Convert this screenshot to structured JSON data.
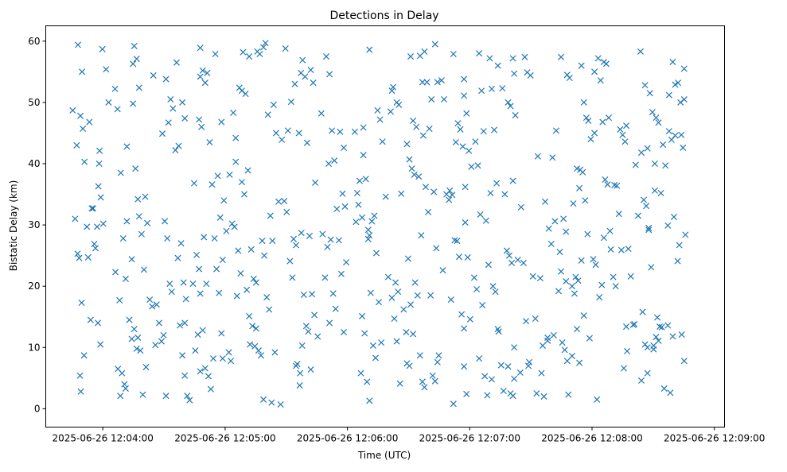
{
  "chart_data": {
    "type": "scatter",
    "title": "Detections in Delay",
    "xlabel": "Time (UTC)",
    "ylabel": "Bistatic Delay (km)",
    "x_origin": "2025-06-26 12:04:00",
    "xlim_seconds": [
      -28,
      305
    ],
    "ylim": [
      -3,
      62.5
    ],
    "x_ticks": [
      {
        "t": 0,
        "label": "2025-06-26 12:04:00"
      },
      {
        "t": 60,
        "label": "2025-06-26 12:05:00"
      },
      {
        "t": 120,
        "label": "2025-06-26 12:06:00"
      },
      {
        "t": 180,
        "label": "2025-06-26 12:07:00"
      },
      {
        "t": 240,
        "label": "2025-06-26 12:08:00"
      },
      {
        "t": 300,
        "label": "2025-06-26 12:09:00"
      }
    ],
    "y_ticks": [
      0,
      10,
      20,
      30,
      40,
      50,
      60
    ],
    "marker": "x",
    "color": "#1f77b4",
    "grid": false,
    "points_by_time": [
      [
        -13,
        [
          48.7,
          31,
          25.3,
          5.4
        ]
      ],
      [
        -11,
        [
          59.4,
          47.8,
          45.7,
          43,
          24.6,
          17.3,
          8.7
        ]
      ],
      [
        -9,
        [
          55,
          40.3,
          29.7,
          2.8
        ]
      ],
      [
        -6,
        [
          46.8,
          32.7,
          26.9,
          24.7,
          14.5
        ]
      ],
      [
        -3,
        [
          40,
          32.7,
          26.2,
          14,
          10.5
        ]
      ],
      [
        -1,
        [
          36.3,
          34.5,
          30.2,
          29.7,
          42.1
        ]
      ],
      [
        1,
        [
          55.4,
          50,
          58.7
        ]
      ],
      [
        6,
        [
          52.2,
          48.9
        ]
      ],
      [
        8,
        [
          22.3,
          6.5,
          2.1
        ]
      ],
      [
        10,
        [
          42.8,
          38.5,
          27.8,
          21.2,
          17.7,
          5.8,
          4
        ]
      ],
      [
        13,
        [
          56.3,
          30.6,
          14.5,
          11.4,
          3.3
        ]
      ],
      [
        16,
        [
          59.2,
          57.1,
          52.4,
          49.8,
          39.2,
          34.2,
          24.4,
          13,
          9.8
        ]
      ],
      [
        19,
        [
          34.6,
          31.4,
          28.5,
          22.7,
          11.6,
          9.5,
          2.3
        ]
      ],
      [
        23,
        [
          54.4,
          30.3,
          17.8,
          16.7,
          6.8
        ]
      ],
      [
        27,
        [
          17,
          14,
          11,
          10.4
        ]
      ],
      [
        31,
        [
          53.8,
          46.7,
          44.9,
          30.6,
          27.8,
          20.4,
          12,
          2.1
        ]
      ],
      [
        35,
        [
          56.5,
          50.5,
          49,
          42.2,
          24.6,
          19.1
        ]
      ],
      [
        39,
        [
          50,
          47.4,
          42.9,
          27,
          20.6,
          17.9,
          13.6,
          8.7,
          5.4
        ]
      ],
      [
        42,
        [
          14,
          2.1,
          1.4
        ]
      ],
      [
        46,
        [
          54.2,
          36.8,
          25.1,
          22.8,
          20.4,
          9.5,
          12.1,
          6.1
        ]
      ],
      [
        49,
        [
          58.9,
          55.2,
          53.2,
          47.2,
          46,
          28,
          20.4,
          18.8,
          12.8,
          6.6
        ]
      ],
      [
        53,
        [
          54.8,
          43.5,
          36.6,
          27.8,
          5.3,
          3.2,
          8.2
        ]
      ],
      [
        57,
        [
          57.9,
          38,
          31.2,
          24.3,
          22.8,
          18.9,
          12.3
        ]
      ],
      [
        60,
        [
          46.8,
          34,
          29,
          9.2,
          8.2
        ]
      ],
      [
        64,
        [
          48.3,
          40.3,
          38.2,
          30.2,
          29.7,
          18.4,
          7.8
        ]
      ],
      [
        67,
        [
          52.4,
          51.9,
          44.2,
          25.8,
          22.1
        ]
      ],
      [
        70,
        [
          57.5,
          58.2,
          51.4,
          38.9,
          37,
          35,
          19.4,
          15.1
        ]
      ],
      [
        74,
        [
          26,
          21.2,
          20.6,
          10.5,
          13.5,
          10.2
        ]
      ],
      [
        77,
        [
          59,
          58.3,
          57.9,
          27.4,
          13.1,
          9.5,
          8.7,
          1.5
        ]
      ],
      [
        81,
        [
          59.7,
          48,
          31.5,
          25,
          18.2,
          16.2,
          1
        ]
      ],
      [
        85,
        [
          49.6,
          45,
          33.8,
          27.4,
          9.2
        ]
      ],
      [
        89,
        [
          58.8,
          45.4,
          43.9,
          33.9,
          32.1,
          0.7
        ]
      ],
      [
        93,
        [
          50.1,
          27.7,
          26.7,
          24.1,
          21.4
        ]
      ],
      [
        96,
        [
          54.8,
          53,
          7.3,
          3.8,
          10.3,
          7
        ]
      ],
      [
        98,
        [
          56.9,
          54.2,
          45,
          28.7,
          18.6,
          13.5,
          5.8
        ]
      ],
      [
        102,
        [
          55.3,
          53.2,
          43.4,
          28.2,
          18.7,
          15.3,
          12.6,
          6.4
        ]
      ],
      [
        106,
        [
          48.2,
          36.9,
          11.8
        ]
      ],
      [
        109,
        [
          57.5,
          40,
          28.5,
          21.4,
          26.4
        ]
      ],
      [
        113,
        [
          54.6,
          45.4,
          40.5,
          32.6,
          27.6,
          18.8,
          16.3,
          14
        ]
      ],
      [
        117,
        [
          45.2,
          35.1,
          33,
          27.5,
          22,
          12.5
        ]
      ],
      [
        120,
        [
          42.6,
          23.9
        ]
      ],
      [
        123,
        [
          45.2
        ]
      ],
      [
        126,
        [
          45.9,
          35.2,
          37.2,
          31.2,
          30.5,
          33.3,
          5.8
        ]
      ],
      [
        129,
        [
          58.6,
          41.4,
          37.5,
          29.2,
          15.1,
          12.3,
          4.4,
          1.3
        ]
      ],
      [
        132,
        [
          28.3,
          30.6,
          31.5,
          27.7,
          18.9,
          10.3,
          8.3
        ]
      ],
      [
        136,
        [
          48.7,
          47.2,
          43.6,
          25.4,
          17.4,
          10.8
        ]
      ],
      [
        140,
        [
          51.9,
          34.6,
          21.5
        ]
      ],
      [
        143,
        [
          50,
          48.5,
          52.5,
          20.6,
          19.1,
          18.1,
          14.7,
          11
        ]
      ],
      [
        147,
        [
          49.6,
          35.1,
          16.2,
          12.5,
          4.1
        ]
      ],
      [
        151,
        [
          57.5,
          47,
          43.2,
          40.7,
          39.2,
          38.2,
          24.5,
          17,
          12.2,
          7.4,
          7
        ]
      ],
      [
        155,
        [
          57.6,
          53.3,
          46,
          37.9,
          28.3,
          20.6,
          18.5,
          8.7,
          4.4
        ]
      ],
      [
        159,
        [
          58.3,
          53.3,
          45.7,
          44.6,
          36.2,
          32.1,
          18.5,
          3.5
        ]
      ],
      [
        163,
        [
          59.5,
          53.3,
          50.5,
          35.4,
          26.2,
          8.7,
          5.4,
          4.5,
          7.6
        ]
      ],
      [
        168,
        [
          53.6,
          50.5,
          35,
          34.1,
          22.6
        ]
      ],
      [
        172,
        [
          57.9,
          43.5,
          35.6,
          34.9,
          27.5,
          27.4,
          17.8,
          0.8
        ]
      ],
      [
        176,
        [
          51.1,
          46.6,
          45.6,
          42.8,
          30.4,
          24.8,
          15.4,
          13.1
        ]
      ],
      [
        179,
        [
          53.8,
          48.2,
          42.1,
          39.5,
          36.2,
          24.7,
          14.6,
          6.9,
          2.4
        ]
      ],
      [
        184,
        [
          58,
          51.9,
          43.6,
          39.7,
          31.7,
          21.4,
          19.5,
          8.2
        ]
      ],
      [
        188,
        [
          57.2,
          45.3,
          30.7,
          23.5,
          16.9,
          5.3,
          2.2
        ]
      ],
      [
        192,
        [
          56,
          52.2,
          45.5,
          36.8,
          35.2,
          20,
          19.1,
          13,
          4.8
        ]
      ],
      [
        196,
        [
          52.3,
          35,
          12.6,
          7.1,
          2.9
        ]
      ],
      [
        200,
        [
          54.7,
          50,
          49.4,
          37.2,
          25.8,
          25,
          23.8,
          10,
          6.9,
          2.5,
          2.1
        ]
      ],
      [
        203,
        [
          57.2,
          47.9,
          24.3,
          5.9,
          4.9
        ]
      ],
      [
        207,
        [
          57.4,
          54.9,
          32.9,
          23.8,
          14.3,
          7
        ]
      ],
      [
        211,
        [
          54.4,
          21.6,
          14.7,
          7.6
        ]
      ],
      [
        214,
        [
          41.2,
          21.3,
          10.3,
          2.5
        ]
      ],
      [
        217,
        [
          33.8,
          11.1,
          5.8,
          2
        ]
      ],
      [
        220,
        [
          41,
          30.6,
          29.4,
          26.9,
          12,
          11.6
        ]
      ],
      [
        223,
        [
          45.4,
          19.2,
          22.4
        ]
      ],
      [
        226,
        [
          57.4,
          31,
          28.9,
          25.6,
          10.8,
          9.6,
          7.8
        ]
      ],
      [
        229,
        [
          54.5,
          54,
          8.6,
          20.8,
          2.3
        ]
      ],
      [
        232,
        [
          39.2,
          36,
          33.5,
          21.5,
          20.9,
          20,
          18.8,
          13,
          7.5
        ]
      ],
      [
        236,
        [
          56,
          50,
          47.5,
          39,
          38.6,
          34,
          28.5,
          24.2,
          15.2
        ]
      ],
      [
        240,
        [
          55,
          47,
          44,
          24.4,
          23.5,
          11.5
        ]
      ],
      [
        243,
        [
          57.2,
          53.6,
          45,
          1.5,
          18.2,
          20.2
        ]
      ],
      [
        247,
        [
          56.6,
          56.3,
          47.5,
          46.8,
          37.4,
          36.6,
          29,
          27.9
        ]
      ],
      [
        251,
        [
          36.5,
          36.4,
          26,
          21.5,
          20
        ]
      ],
      [
        255,
        [
          46.2,
          45.6,
          44.7,
          43.6,
          31.8,
          25.9,
          6.6,
          13.4
        ]
      ],
      [
        259,
        [
          26.1,
          21.6,
          13.7,
          9.4
        ]
      ],
      [
        262,
        [
          39.8,
          31.5,
          58.3,
          13.8
        ]
      ],
      [
        266,
        [
          52.8,
          42.5,
          41.8,
          34.1,
          33.1,
          29.5,
          15.8,
          10.5,
          10,
          4.6
        ]
      ],
      [
        269,
        [
          51.5,
          48.4,
          40,
          29.2,
          23.1,
          10.3,
          5.8
        ]
      ],
      [
        272,
        [
          47.5,
          46.7,
          35.2,
          35.6,
          14.9,
          13.4,
          9.7,
          11.7,
          11.1
        ]
      ],
      [
        276,
        [
          45.3,
          43.1,
          39.7,
          13.6,
          13.3,
          3.3
        ]
      ],
      [
        279,
        [
          56.6,
          52.9,
          51.2,
          43.9,
          31.3,
          29.9,
          2.6,
          11.8
        ]
      ],
      [
        282,
        [
          44.7,
          44.6,
          24.1
        ]
      ],
      [
        284,
        [
          55.5,
          53.2,
          50,
          42.6,
          28.4,
          26.7,
          12.1,
          7.8
        ]
      ],
      [
        287,
        [
          50.5
        ]
      ]
    ]
  }
}
